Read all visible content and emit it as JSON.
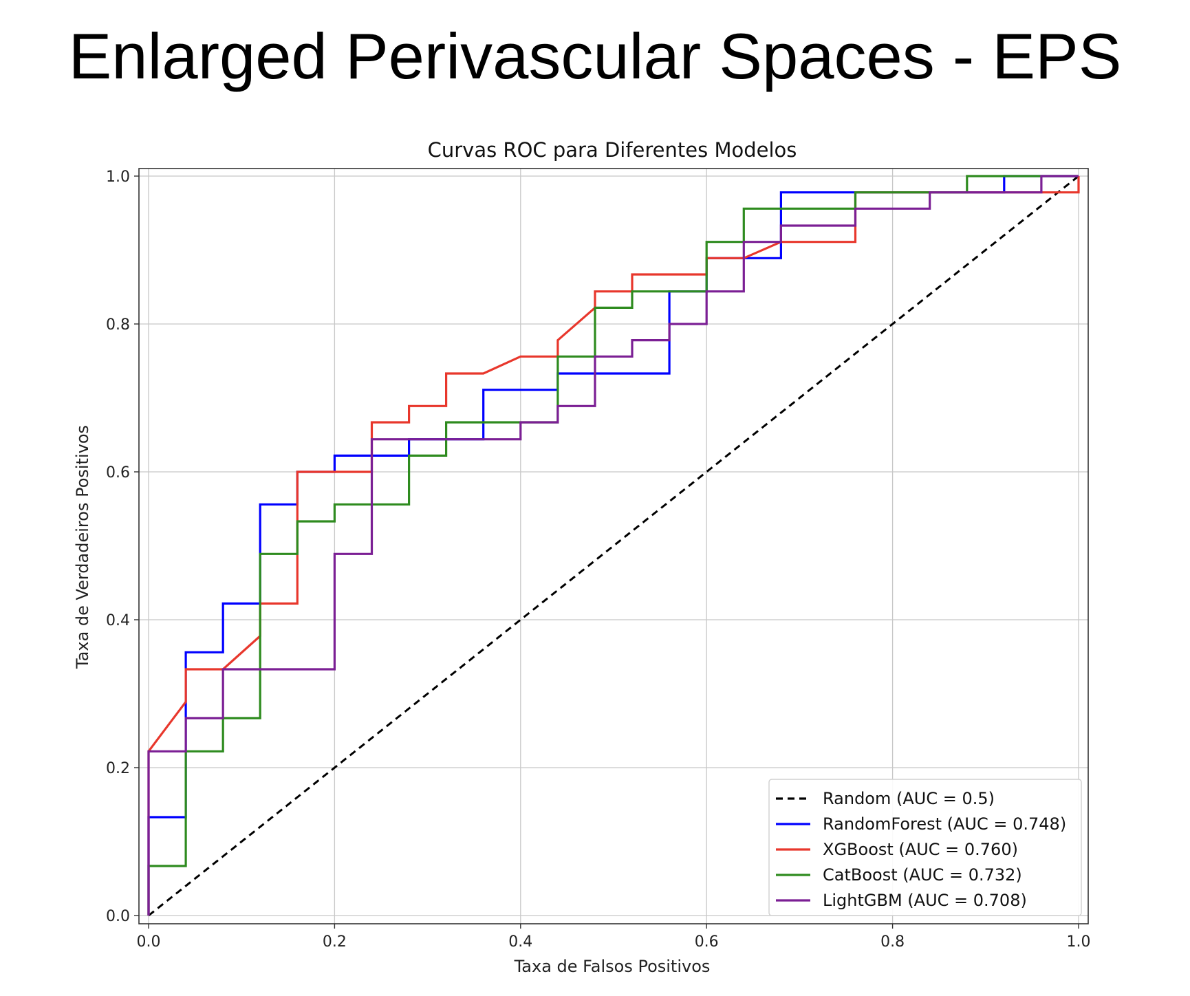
{
  "page_title": "Enlarged Perivascular Spaces - EPS",
  "chart_data": {
    "type": "line",
    "title": "Curvas ROC para Diferentes Modelos",
    "xlabel": "Taxa de Falsos Positivos",
    "ylabel": "Taxa de Verdadeiros Positivos",
    "xlim": [
      0,
      1
    ],
    "ylim": [
      0,
      1
    ],
    "xticks": [
      0.0,
      0.2,
      0.4,
      0.6,
      0.8,
      1.0
    ],
    "xtick_labels": [
      "0.0",
      "0.2",
      "0.4",
      "0.6",
      "0.8",
      "1.0"
    ],
    "yticks": [
      0.0,
      0.2,
      0.4,
      0.6,
      0.8,
      1.0
    ],
    "ytick_labels": [
      "0.0",
      "0.2",
      "0.4",
      "0.6",
      "0.8",
      "1.0"
    ],
    "grid": true,
    "legend_position": "lower-right",
    "series": [
      {
        "name": "Random (AUC = 0.5)",
        "color": "#000000",
        "dashed": true,
        "x": [
          0,
          1
        ],
        "y": [
          0,
          1
        ]
      },
      {
        "name": "RandomForest (AUC = 0.748)",
        "color": "#0000ff",
        "dashed": false,
        "x": [
          0,
          0,
          0.04,
          0.04,
          0.08,
          0.08,
          0.12,
          0.12,
          0.16,
          0.16,
          0.2,
          0.2,
          0.28,
          0.28,
          0.36,
          0.36,
          0.44,
          0.44,
          0.56,
          0.56,
          0.6,
          0.6,
          0.68,
          0.68,
          0.76,
          0.76,
          0.92,
          0.92,
          1,
          1
        ],
        "y": [
          0,
          0.133,
          0.133,
          0.356,
          0.356,
          0.422,
          0.422,
          0.556,
          0.556,
          0.6,
          0.6,
          0.622,
          0.622,
          0.644,
          0.644,
          0.711,
          0.711,
          0.733,
          0.733,
          0.844,
          0.844,
          0.889,
          0.889,
          0.978,
          0.978,
          0.978,
          0.978,
          1,
          1,
          1
        ]
      },
      {
        "name": "XGBoost (AUC = 0.760)",
        "color": "#e8372c",
        "dashed": false,
        "x": [
          0,
          0,
          0.04,
          0.04,
          0.08,
          0.12,
          0.12,
          0.16,
          0.16,
          0.24,
          0.24,
          0.28,
          0.28,
          0.32,
          0.32,
          0.36,
          0.4,
          0.44,
          0.44,
          0.48,
          0.48,
          0.52,
          0.52,
          0.6,
          0.6,
          0.64,
          0.68,
          0.76,
          0.76,
          1,
          1
        ],
        "y": [
          0,
          0.222,
          0.289,
          0.333,
          0.333,
          0.378,
          0.422,
          0.422,
          0.6,
          0.6,
          0.667,
          0.667,
          0.689,
          0.689,
          0.733,
          0.733,
          0.756,
          0.756,
          0.778,
          0.822,
          0.844,
          0.844,
          0.867,
          0.867,
          0.889,
          0.889,
          0.911,
          0.911,
          0.978,
          0.978,
          1
        ]
      },
      {
        "name": "CatBoost (AUC = 0.732)",
        "color": "#2e8b1f",
        "dashed": false,
        "x": [
          0,
          0,
          0.04,
          0.04,
          0.08,
          0.08,
          0.12,
          0.12,
          0.16,
          0.16,
          0.2,
          0.2,
          0.28,
          0.28,
          0.32,
          0.32,
          0.44,
          0.44,
          0.48,
          0.48,
          0.52,
          0.52,
          0.6,
          0.6,
          0.64,
          0.64,
          0.76,
          0.76,
          0.88,
          0.88,
          1
        ],
        "y": [
          0,
          0.067,
          0.067,
          0.222,
          0.222,
          0.267,
          0.267,
          0.489,
          0.489,
          0.533,
          0.533,
          0.556,
          0.556,
          0.622,
          0.622,
          0.667,
          0.667,
          0.756,
          0.756,
          0.822,
          0.822,
          0.844,
          0.844,
          0.911,
          0.911,
          0.956,
          0.956,
          0.978,
          0.978,
          1,
          1
        ]
      },
      {
        "name": "LightGBM (AUC = 0.708)",
        "color": "#7b1f94",
        "dashed": false,
        "x": [
          0,
          0,
          0.04,
          0.04,
          0.08,
          0.08,
          0.2,
          0.2,
          0.24,
          0.24,
          0.4,
          0.4,
          0.44,
          0.44,
          0.48,
          0.48,
          0.52,
          0.52,
          0.56,
          0.56,
          0.6,
          0.6,
          0.64,
          0.64,
          0.68,
          0.68,
          0.76,
          0.76,
          0.84,
          0.84,
          0.96,
          0.96,
          1
        ],
        "y": [
          0,
          0.222,
          0.222,
          0.267,
          0.267,
          0.333,
          0.333,
          0.489,
          0.489,
          0.644,
          0.644,
          0.667,
          0.667,
          0.689,
          0.689,
          0.756,
          0.756,
          0.778,
          0.778,
          0.8,
          0.8,
          0.844,
          0.844,
          0.911,
          0.911,
          0.933,
          0.933,
          0.956,
          0.956,
          0.978,
          0.978,
          1,
          1
        ]
      }
    ]
  }
}
